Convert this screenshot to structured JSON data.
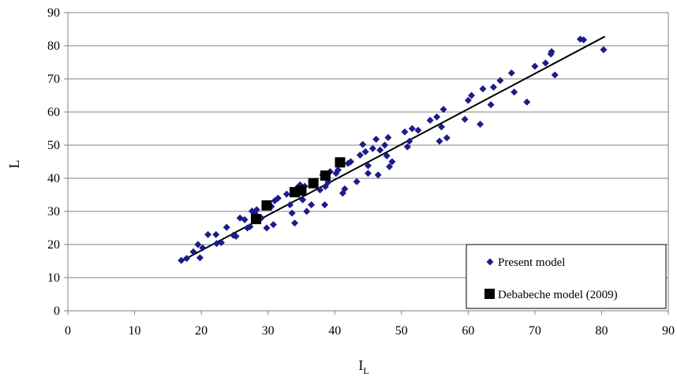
{
  "chart_data": {
    "type": "scatter",
    "xlabel_main": "I",
    "xlabel_sub": "L",
    "ylabel": "L",
    "xlim": [
      0,
      90
    ],
    "ylim": [
      0,
      90
    ],
    "xticks": [
      "0",
      "10",
      "20",
      "30",
      "40",
      "50",
      "60",
      "70",
      "80",
      "90"
    ],
    "yticks": [
      "0",
      "10",
      "20",
      "30",
      "40",
      "50",
      "60",
      "70",
      "80",
      "90"
    ],
    "grid": "horizontal",
    "legend_position": "bottom-right",
    "colors": {
      "present": "#1c1c8a",
      "debabeche": "#000000",
      "fit": "#000000"
    },
    "series": [
      {
        "name": "Present model",
        "marker": "diamond",
        "points": [
          [
            17.0,
            15.2
          ],
          [
            17.8,
            15.8
          ],
          [
            18.8,
            17.8
          ],
          [
            19.5,
            20.0
          ],
          [
            19.8,
            16.0
          ],
          [
            20.2,
            19.0
          ],
          [
            21.0,
            23.0
          ],
          [
            22.2,
            23.0
          ],
          [
            22.3,
            20.3
          ],
          [
            23.0,
            20.6
          ],
          [
            23.8,
            25.2
          ],
          [
            24.8,
            22.8
          ],
          [
            25.2,
            22.5
          ],
          [
            25.8,
            28.0
          ],
          [
            26.5,
            27.5
          ],
          [
            26.9,
            25.0
          ],
          [
            27.3,
            25.4
          ],
          [
            27.6,
            30.1
          ],
          [
            28.0,
            29.5
          ],
          [
            28.3,
            30.5
          ],
          [
            29.0,
            28.0
          ],
          [
            29.8,
            25.0
          ],
          [
            30.5,
            31.5
          ],
          [
            30.8,
            26.0
          ],
          [
            31.0,
            33.2
          ],
          [
            31.5,
            34.0
          ],
          [
            32.8,
            35.2
          ],
          [
            33.3,
            32.0
          ],
          [
            33.6,
            29.5
          ],
          [
            34.0,
            26.5
          ],
          [
            34.3,
            37.0
          ],
          [
            34.8,
            38.0
          ],
          [
            35.2,
            33.5
          ],
          [
            35.5,
            37.6
          ],
          [
            35.8,
            30.0
          ],
          [
            36.5,
            32.0
          ],
          [
            37.0,
            38.5
          ],
          [
            37.8,
            36.5
          ],
          [
            38.2,
            41.0
          ],
          [
            38.5,
            32.0
          ],
          [
            38.6,
            37.5
          ],
          [
            39.0,
            38.8
          ],
          [
            39.3,
            42.0
          ],
          [
            40.2,
            41.5
          ],
          [
            40.5,
            42.5
          ],
          [
            41.2,
            35.5
          ],
          [
            41.5,
            36.8
          ],
          [
            42.0,
            44.5
          ],
          [
            42.4,
            45.0
          ],
          [
            43.3,
            39.0
          ],
          [
            43.8,
            47.0
          ],
          [
            44.2,
            50.2
          ],
          [
            44.6,
            48.0
          ],
          [
            45.0,
            41.5
          ],
          [
            45.0,
            43.8
          ],
          [
            45.7,
            49.0
          ],
          [
            46.2,
            51.8
          ],
          [
            46.5,
            41.0
          ],
          [
            46.8,
            48.5
          ],
          [
            47.5,
            50.0
          ],
          [
            47.8,
            46.8
          ],
          [
            48.0,
            52.3
          ],
          [
            48.2,
            43.5
          ],
          [
            48.6,
            45.0
          ],
          [
            50.5,
            54.0
          ],
          [
            50.9,
            49.5
          ],
          [
            51.2,
            51.2
          ],
          [
            51.6,
            55.0
          ],
          [
            52.5,
            54.5
          ],
          [
            54.3,
            57.5
          ],
          [
            55.3,
            58.5
          ],
          [
            55.7,
            51.2
          ],
          [
            56.0,
            55.5
          ],
          [
            56.3,
            60.8
          ],
          [
            56.8,
            52.2
          ],
          [
            59.5,
            57.8
          ],
          [
            60.0,
            63.5
          ],
          [
            60.5,
            65.0
          ],
          [
            61.8,
            56.3
          ],
          [
            62.2,
            67.0
          ],
          [
            63.4,
            62.2
          ],
          [
            63.8,
            67.5
          ],
          [
            64.8,
            69.5
          ],
          [
            66.5,
            71.8
          ],
          [
            66.9,
            66.0
          ],
          [
            68.8,
            63.0
          ],
          [
            70.0,
            73.8
          ],
          [
            71.6,
            74.8
          ],
          [
            72.4,
            77.5
          ],
          [
            72.5,
            78.2
          ],
          [
            73.0,
            71.2
          ],
          [
            76.8,
            82.0
          ],
          [
            77.3,
            81.8
          ],
          [
            80.3,
            78.8
          ]
        ]
      },
      {
        "name": "Debabeche model (2009)",
        "marker": "square",
        "points": [
          [
            28.2,
            27.7
          ],
          [
            29.8,
            31.8
          ],
          [
            34.0,
            35.8
          ],
          [
            35.0,
            36.3
          ],
          [
            36.8,
            38.5
          ],
          [
            38.6,
            40.8
          ],
          [
            40.8,
            44.8
          ]
        ]
      }
    ],
    "fit_line": {
      "x": [
        17.0,
        80.5
      ],
      "y": [
        15.0,
        82.8
      ]
    }
  }
}
